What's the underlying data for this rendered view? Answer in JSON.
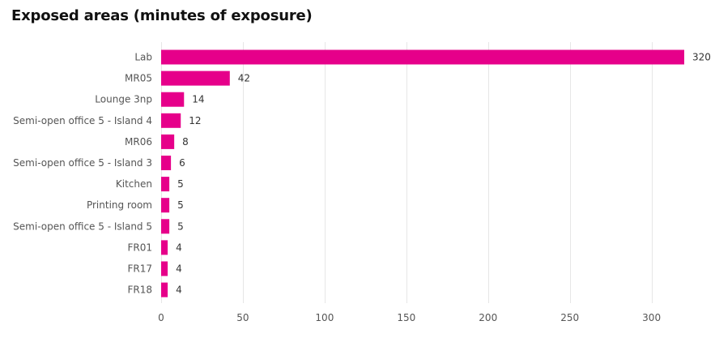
{
  "chart_data": {
    "type": "bar",
    "orientation": "horizontal",
    "title": "Exposed areas (minutes of exposure)",
    "categories": [
      "Lab",
      "MR05",
      "Lounge 3np",
      "Semi-open office 5 - Island 4",
      "MR06",
      "Semi-open office 5 - Island 3",
      "Kitchen",
      "Printing room",
      "Semi-open office 5 - Island 5",
      "FR01",
      "FR17",
      "FR18"
    ],
    "values": [
      320,
      42,
      14,
      12,
      8,
      6,
      5,
      5,
      5,
      4,
      4,
      4
    ],
    "xlabel": "",
    "ylabel": "",
    "xlim": [
      0,
      320
    ],
    "xticks": [
      0,
      50,
      100,
      150,
      200,
      250,
      300
    ],
    "grid": true,
    "legend": "none",
    "bar_color": "#e6008a"
  }
}
